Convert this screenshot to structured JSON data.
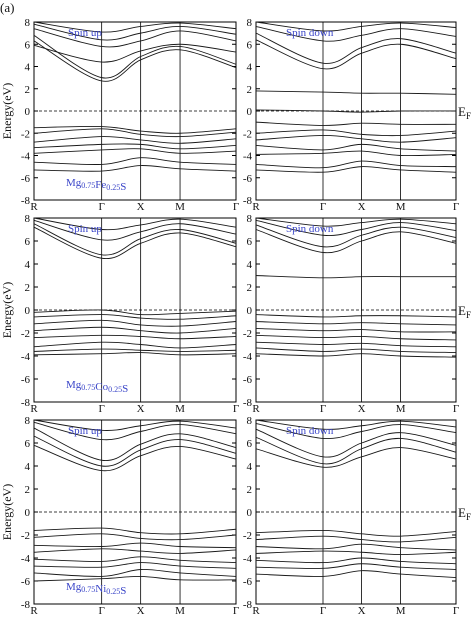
{
  "panel_label": "(a)",
  "fermi_label": {
    "main": "E",
    "sub": "F"
  },
  "y_axis_label": "Energy(eV)",
  "y_ticks": [
    "8",
    "6",
    "4",
    "2",
    "0",
    "-2",
    "-4",
    "-6",
    "-8"
  ],
  "k_labels": [
    "R",
    "Γ",
    "X",
    "M",
    "Γ"
  ],
  "rows": [
    {
      "compound": {
        "parts": [
          [
            "Mg",
            false
          ],
          [
            "0.75",
            true
          ],
          [
            "Fe",
            false
          ],
          [
            "0.25",
            true
          ],
          [
            "S",
            false
          ]
        ]
      }
    },
    {
      "compound": {
        "parts": [
          [
            "Mg",
            false
          ],
          [
            "0.75",
            true
          ],
          [
            "Co",
            false
          ],
          [
            "0.25",
            true
          ],
          [
            "S",
            false
          ]
        ]
      }
    },
    {
      "compound": {
        "parts": [
          [
            "Mg",
            false
          ],
          [
            "0.75",
            true
          ],
          [
            "Ni",
            false
          ],
          [
            "0.25",
            true
          ],
          [
            "S",
            false
          ]
        ]
      }
    }
  ],
  "spin_titles": {
    "up": "Spin up",
    "down": "Spin down"
  },
  "chart_data": [
    {
      "type": "line",
      "title": "Spin up",
      "compound": "Mg0.75Fe0.25S",
      "ylabel": "Energy(eV)",
      "ylim": [
        -8,
        8
      ],
      "k_points": [
        "R",
        "Γ",
        "X",
        "M",
        "Γ"
      ],
      "fermi_level": 0,
      "series": [
        {
          "values": [
            6.8,
            3.0,
            4.9,
            5.8,
            4.2
          ]
        },
        {
          "values": [
            6.3,
            2.7,
            4.6,
            5.5,
            3.9
          ]
        },
        {
          "values": [
            7.4,
            5.8,
            6.3,
            7.2,
            6.3
          ]
        },
        {
          "values": [
            7.8,
            6.4,
            7.0,
            7.6,
            6.9
          ]
        },
        {
          "values": [
            5.9,
            4.4,
            5.4,
            6.0,
            5.3
          ]
        },
        {
          "values": [
            8.0,
            7.1,
            7.6,
            7.9,
            7.4
          ]
        },
        {
          "values": [
            -1.5,
            -1.4,
            -1.8,
            -2.0,
            -1.6
          ]
        },
        {
          "values": [
            -2.0,
            -1.6,
            -2.1,
            -2.3,
            -1.9
          ]
        },
        {
          "values": [
            -2.8,
            -2.3,
            -2.6,
            -2.9,
            -2.5
          ]
        },
        {
          "values": [
            -3.3,
            -3.0,
            -3.0,
            -3.4,
            -3.1
          ]
        },
        {
          "values": [
            -3.8,
            -3.5,
            -3.4,
            -3.8,
            -3.6
          ]
        },
        {
          "values": [
            -4.6,
            -4.8,
            -4.2,
            -4.6,
            -4.8
          ]
        },
        {
          "values": [
            -5.3,
            -5.4,
            -4.9,
            -5.2,
            -5.4
          ]
        }
      ]
    },
    {
      "type": "line",
      "title": "Spin down",
      "compound": "Mg0.75Fe0.25S",
      "ylim": [
        -8,
        8
      ],
      "k_points": [
        "R",
        "Γ",
        "X",
        "M",
        "Γ"
      ],
      "fermi_level": 0,
      "series": [
        {
          "values": [
            1.8,
            1.7,
            1.6,
            1.6,
            1.5
          ]
        },
        {
          "values": [
            0.1,
            0.0,
            -0.1,
            0.0,
            0.0
          ]
        },
        {
          "values": [
            7.0,
            4.3,
            5.7,
            6.5,
            5.2
          ]
        },
        {
          "values": [
            6.4,
            3.8,
            5.2,
            6.0,
            4.7
          ]
        },
        {
          "values": [
            7.6,
            6.3,
            6.8,
            7.4,
            6.7
          ]
        },
        {
          "values": [
            8.0,
            7.2,
            7.6,
            7.9,
            7.5
          ]
        },
        {
          "values": [
            -1.0,
            -1.3,
            -1.1,
            -1.2,
            -1.2
          ]
        },
        {
          "values": [
            -2.0,
            -1.7,
            -2.1,
            -2.2,
            -1.8
          ]
        },
        {
          "values": [
            -2.6,
            -2.2,
            -2.5,
            -2.8,
            -2.4
          ]
        },
        {
          "values": [
            -3.1,
            -3.5,
            -3.0,
            -3.4,
            -3.6
          ]
        },
        {
          "values": [
            -3.9,
            -3.8,
            -3.6,
            -4.0,
            -3.9
          ]
        },
        {
          "values": [
            -4.8,
            -5.1,
            -4.5,
            -4.9,
            -5.0
          ]
        },
        {
          "values": [
            -5.3,
            -5.5,
            -5.0,
            -5.3,
            -5.5
          ]
        }
      ]
    },
    {
      "type": "line",
      "title": "Spin up",
      "compound": "Mg0.75Co0.25S",
      "ylabel": "Energy(eV)",
      "ylim": [
        -8,
        8
      ],
      "k_points": [
        "R",
        "Γ",
        "X",
        "M",
        "Γ"
      ],
      "fermi_level": 0,
      "series": [
        {
          "values": [
            7.2,
            4.5,
            5.8,
            6.7,
            5.5
          ]
        },
        {
          "values": [
            7.5,
            4.8,
            6.2,
            7.0,
            5.8
          ]
        },
        {
          "values": [
            7.8,
            6.1,
            6.8,
            7.5,
            6.6
          ]
        },
        {
          "values": [
            8.0,
            7.0,
            7.4,
            7.9,
            7.2
          ]
        },
        {
          "values": [
            -0.2,
            0.0,
            -0.4,
            -0.3,
            -0.1
          ]
        },
        {
          "values": [
            -0.6,
            -0.4,
            -0.7,
            -0.8,
            -0.5
          ]
        },
        {
          "values": [
            -1.2,
            -0.9,
            -1.3,
            -1.4,
            -1.0
          ]
        },
        {
          "values": [
            -1.8,
            -1.5,
            -1.8,
            -2.0,
            -1.6
          ]
        },
        {
          "values": [
            -2.4,
            -2.2,
            -2.3,
            -2.5,
            -2.3
          ]
        },
        {
          "values": [
            -3.2,
            -2.8,
            -3.0,
            -3.3,
            -3.0
          ]
        },
        {
          "values": [
            -3.6,
            -3.4,
            -3.5,
            -3.6,
            -3.5
          ]
        },
        {
          "values": [
            -3.9,
            -3.8,
            -3.7,
            -3.9,
            -3.8
          ]
        }
      ]
    },
    {
      "type": "line",
      "title": "Spin down",
      "compound": "Mg0.75Co0.25S",
      "ylim": [
        -8,
        8
      ],
      "k_points": [
        "R",
        "Γ",
        "X",
        "M",
        "Γ"
      ],
      "fermi_level": 0,
      "series": [
        {
          "values": [
            3.0,
            2.8,
            2.9,
            2.9,
            2.9
          ]
        },
        {
          "values": [
            7.0,
            5.0,
            6.0,
            6.8,
            5.8
          ]
        },
        {
          "values": [
            7.4,
            5.5,
            6.5,
            7.2,
            6.3
          ]
        },
        {
          "values": [
            7.8,
            6.5,
            7.0,
            7.6,
            6.9
          ]
        },
        {
          "values": [
            8.0,
            7.3,
            7.6,
            7.9,
            7.5
          ]
        },
        {
          "values": [
            -0.4,
            -0.6,
            -0.5,
            -0.5,
            -0.6
          ]
        },
        {
          "values": [
            -1.0,
            -1.2,
            -1.1,
            -1.2,
            -1.3
          ]
        },
        {
          "values": [
            -1.6,
            -1.8,
            -1.7,
            -1.9,
            -1.9
          ]
        },
        {
          "values": [
            -2.2,
            -2.4,
            -2.3,
            -2.5,
            -2.6
          ]
        },
        {
          "values": [
            -2.8,
            -3.0,
            -2.9,
            -3.1,
            -3.2
          ]
        },
        {
          "values": [
            -3.3,
            -3.6,
            -3.4,
            -3.6,
            -3.7
          ]
        },
        {
          "values": [
            -3.8,
            -4.0,
            -3.8,
            -4.0,
            -4.1
          ]
        }
      ]
    },
    {
      "type": "line",
      "title": "Spin up",
      "compound": "Mg0.75Ni0.25S",
      "ylabel": "Energy(eV)",
      "ylim": [
        -8,
        8
      ],
      "k_points": [
        "R",
        "Γ",
        "X",
        "M",
        "Γ"
      ],
      "fermi_level": 0,
      "series": [
        {
          "values": [
            7.3,
            4.5,
            5.9,
            6.8,
            5.6
          ]
        },
        {
          "values": [
            6.6,
            4.0,
            5.4,
            6.3,
            5.1
          ]
        },
        {
          "values": [
            7.8,
            6.3,
            7.0,
            7.6,
            6.8
          ]
        },
        {
          "values": [
            8.0,
            7.1,
            7.5,
            7.9,
            7.3
          ]
        },
        {
          "values": [
            5.8,
            3.6,
            4.9,
            5.7,
            4.6
          ]
        },
        {
          "values": [
            -1.6,
            -1.4,
            -1.8,
            -1.9,
            -1.5
          ]
        },
        {
          "values": [
            -2.2,
            -1.9,
            -2.3,
            -2.4,
            -2.0
          ]
        },
        {
          "values": [
            -2.9,
            -3.0,
            -2.7,
            -3.0,
            -3.1
          ]
        },
        {
          "values": [
            -3.5,
            -3.2,
            -3.4,
            -3.6,
            -3.3
          ]
        },
        {
          "values": [
            -4.1,
            -4.3,
            -3.9,
            -4.2,
            -4.4
          ]
        },
        {
          "values": [
            -4.7,
            -4.8,
            -4.4,
            -4.7,
            -4.9
          ]
        },
        {
          "values": [
            -5.3,
            -5.6,
            -5.0,
            -5.3,
            -5.6
          ]
        },
        {
          "values": [
            -6.0,
            -5.8,
            -5.6,
            -5.9,
            -5.9
          ]
        }
      ]
    },
    {
      "type": "line",
      "title": "Spin down",
      "compound": "Mg0.75Ni0.25S",
      "ylim": [
        -8,
        8
      ],
      "k_points": [
        "R",
        "Γ",
        "X",
        "M",
        "Γ"
      ],
      "fermi_level": 0,
      "series": [
        {
          "values": [
            7.2,
            4.8,
            6.0,
            6.9,
            5.8
          ]
        },
        {
          "values": [
            6.5,
            4.2,
            5.5,
            6.4,
            5.2
          ]
        },
        {
          "values": [
            7.7,
            6.4,
            7.0,
            7.6,
            6.9
          ]
        },
        {
          "values": [
            8.0,
            7.2,
            7.5,
            7.9,
            7.4
          ]
        },
        {
          "values": [
            5.5,
            3.9,
            4.8,
            5.6,
            4.6
          ]
        },
        {
          "values": [
            -1.8,
            -1.6,
            -1.9,
            -2.1,
            -1.7
          ]
        },
        {
          "values": [
            -2.4,
            -2.1,
            -2.4,
            -2.6,
            -2.2
          ]
        },
        {
          "values": [
            -3.0,
            -3.2,
            -2.8,
            -3.1,
            -3.3
          ]
        },
        {
          "values": [
            -3.6,
            -3.4,
            -3.5,
            -3.7,
            -3.5
          ]
        },
        {
          "values": [
            -4.2,
            -4.4,
            -4.0,
            -4.3,
            -4.5
          ]
        },
        {
          "values": [
            -4.8,
            -4.9,
            -4.5,
            -4.8,
            -5.0
          ]
        },
        {
          "values": [
            -5.4,
            -5.6,
            -5.1,
            -5.4,
            -5.7
          ]
        }
      ]
    }
  ]
}
